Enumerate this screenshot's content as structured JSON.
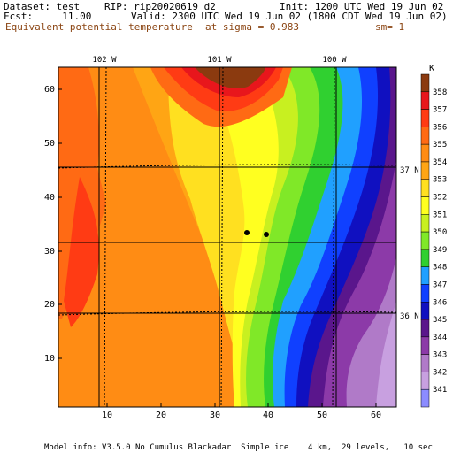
{
  "header": {
    "dataset": "Dataset: test",
    "rip": "RIP: rip20020619 d2",
    "init": "Init: 1200 UTC Wed 19 Jun 02",
    "fcst": "Fcst:     11.00",
    "valid": "Valid: 2300 UTC Wed 19 Jun 02 (1800 CDT Wed 19 Jun 02)",
    "field": "Equivalent potential temperature",
    "sigma": "at sigma = 0.983",
    "sm": "sm= 1"
  },
  "map": {
    "lon_labels": [
      "102 W",
      "101 W",
      "100 W"
    ],
    "lat_labels": [
      "37 N",
      "36 N"
    ],
    "y_ticks": [
      "10",
      "20",
      "30",
      "40",
      "50",
      "60"
    ],
    "x_ticks": [
      "10",
      "20",
      "30",
      "40",
      "50",
      "60"
    ],
    "grid_range": [
      1,
      64
    ]
  },
  "colorbar": {
    "unit": "K",
    "levels": [
      "358",
      "357",
      "356",
      "355",
      "354",
      "353",
      "352",
      "351",
      "350",
      "349",
      "348",
      "347",
      "346",
      "345",
      "344",
      "343",
      "342",
      "341"
    ],
    "colors": [
      "#8b3a0f",
      "#e8161c",
      "#ff3b14",
      "#ff6a14",
      "#ff8c14",
      "#ffa514",
      "#ffe020",
      "#ffff20",
      "#c8f020",
      "#80e828",
      "#30d030",
      "#20a0ff",
      "#1040ff",
      "#1010c0",
      "#5a168c",
      "#8c3aa8",
      "#b07ac8",
      "#c8a0e0",
      "#8c8cff"
    ]
  },
  "footer": "Model info: V3.5.0 No Cumulus Blackadar  Simple ice    4 km,  29 levels,   10 sec"
}
